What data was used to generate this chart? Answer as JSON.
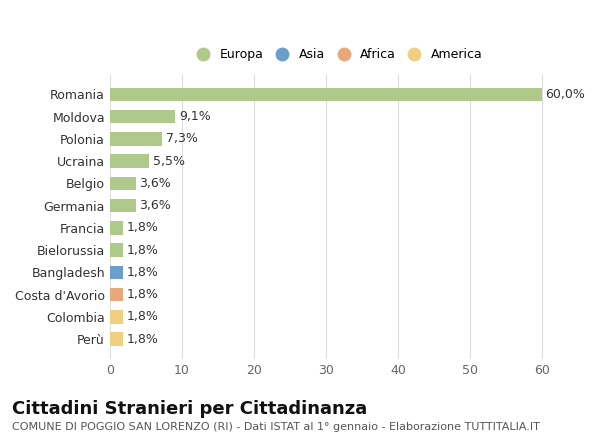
{
  "countries": [
    "Romania",
    "Moldova",
    "Polonia",
    "Ucraina",
    "Belgio",
    "Germania",
    "Francia",
    "Bielorussia",
    "Bangladesh",
    "Costa d'Avorio",
    "Colombia",
    "Perù"
  ],
  "values": [
    60.0,
    9.1,
    7.3,
    5.5,
    3.6,
    3.6,
    1.8,
    1.8,
    1.8,
    1.8,
    1.8,
    1.8
  ],
  "labels": [
    "60,0%",
    "9,1%",
    "7,3%",
    "5,5%",
    "3,6%",
    "3,6%",
    "1,8%",
    "1,8%",
    "1,8%",
    "1,8%",
    "1,8%",
    "1,8%"
  ],
  "continents": [
    "Europa",
    "Europa",
    "Europa",
    "Europa",
    "Europa",
    "Europa",
    "Europa",
    "Europa",
    "Asia",
    "Africa",
    "America",
    "America"
  ],
  "colors": {
    "Europa": "#aec98a",
    "Asia": "#6a9fca",
    "Africa": "#e8a87c",
    "America": "#f0d080"
  },
  "xlim": [
    0,
    63
  ],
  "xticks": [
    0,
    10,
    20,
    30,
    40,
    50,
    60
  ],
  "background_color": "#ffffff",
  "grid_color": "#dddddd",
  "title": "Cittadini Stranieri per Cittadinanza",
  "subtitle": "COMUNE DI POGGIO SAN LORENZO (RI) - Dati ISTAT al 1° gennaio - Elaborazione TUTTITALIA.IT",
  "bar_height": 0.6,
  "label_fontsize": 9,
  "tick_fontsize": 9,
  "title_fontsize": 13,
  "subtitle_fontsize": 8,
  "legend_entries": [
    "Europa",
    "Asia",
    "Africa",
    "America"
  ]
}
